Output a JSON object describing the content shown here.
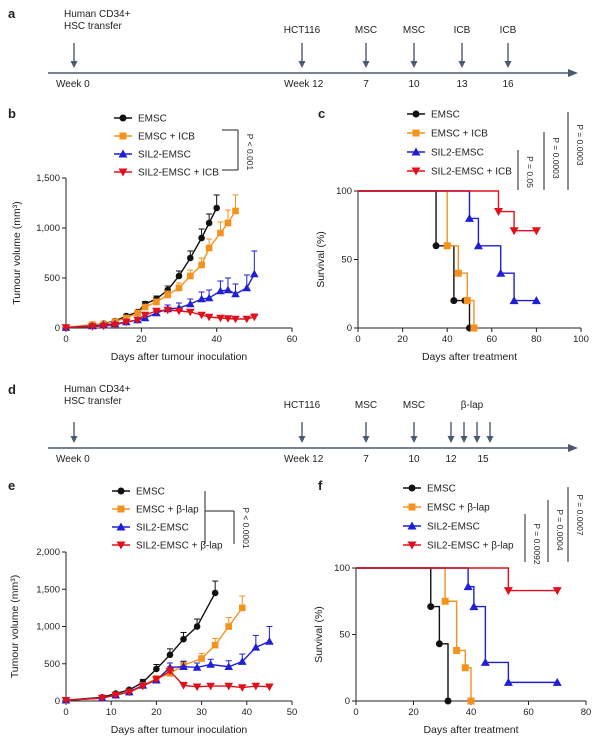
{
  "colors": {
    "black": "#111111",
    "orange": "#f5921e",
    "blue": "#1f1fd6",
    "red": "#e0101c",
    "timeline": "#4a5a6e"
  },
  "timelines": [
    {
      "panel": "a",
      "events": [
        {
          "top": "Human CD34+",
          "top2": "HSC transfer",
          "bottom": "Week 0",
          "week": 0
        },
        {
          "top": "HCT116",
          "top2": "",
          "bottom": "Week 12",
          "week": 12
        },
        {
          "top": "MSC",
          "top2": "",
          "bottom": "7",
          "week": 7
        },
        {
          "top": "MSC",
          "top2": "",
          "bottom": "10",
          "week": 10
        },
        {
          "top": "ICB",
          "top2": "",
          "bottom": "13",
          "week": 13
        },
        {
          "top": "ICB",
          "top2": "",
          "bottom": "16",
          "week": 16
        }
      ]
    },
    {
      "panel": "d",
      "events": [
        {
          "top": "Human CD34+",
          "top2": "HSC transfer",
          "bottom": "Week 0"
        },
        {
          "top": "HCT116",
          "top2": "",
          "bottom": "Week 12"
        },
        {
          "top": "MSC",
          "top2": "",
          "bottom": "7"
        },
        {
          "top": "MSC",
          "top2": "",
          "bottom": "10"
        },
        {
          "top": "β-lap",
          "top2": "",
          "bottom": "12"
        },
        {
          "top": "",
          "top2": "",
          "bottom": ""
        },
        {
          "top": "",
          "top2": "",
          "bottom": "15"
        },
        {
          "top": "",
          "top2": "",
          "bottom": ""
        }
      ]
    }
  ],
  "chart_data": [
    {
      "panel": "b",
      "type": "line",
      "xlabel": "Days after tumour inoculation",
      "ylabel": "Tumour volume (mm³)",
      "xlim": [
        0,
        60
      ],
      "ylim": [
        0,
        1500
      ],
      "xticks": [
        0,
        20,
        40,
        60
      ],
      "yticks": [
        0,
        500,
        1000,
        1500
      ],
      "ytick_labels": [
        "0",
        "500",
        "1,000",
        "1,500"
      ],
      "pvalue": "P < 0.001",
      "series": [
        {
          "name": "EMSC",
          "color": "black",
          "marker": "circle",
          "x": [
            0,
            7,
            10,
            13,
            16,
            19,
            21,
            24,
            27,
            30,
            33,
            36,
            38,
            40
          ],
          "y": [
            5,
            25,
            45,
            70,
            120,
            160,
            240,
            290,
            380,
            520,
            700,
            900,
            1050,
            1200
          ],
          "err": [
            0,
            5,
            8,
            10,
            15,
            20,
            25,
            30,
            40,
            50,
            70,
            90,
            90,
            130
          ]
        },
        {
          "name": "EMSC + ICB",
          "color": "orange",
          "marker": "square",
          "x": [
            0,
            7,
            10,
            13,
            16,
            19,
            21,
            24,
            27,
            30,
            33,
            36,
            38,
            41,
            43,
            45
          ],
          "y": [
            5,
            35,
            40,
            65,
            100,
            150,
            210,
            260,
            330,
            400,
            520,
            630,
            800,
            950,
            1050,
            1170
          ],
          "err": [
            0,
            10,
            10,
            15,
            15,
            20,
            25,
            30,
            40,
            50,
            60,
            70,
            90,
            110,
            130,
            160
          ]
        },
        {
          "name": "SIL2-EMSC",
          "color": "blue",
          "marker": "triangle-up",
          "x": [
            0,
            7,
            10,
            13,
            16,
            19,
            21,
            24,
            27,
            30,
            33,
            36,
            38,
            41,
            43,
            45,
            48,
            50
          ],
          "y": [
            5,
            20,
            30,
            40,
            60,
            80,
            100,
            150,
            190,
            200,
            240,
            290,
            300,
            370,
            380,
            340,
            400,
            540
          ],
          "err": [
            0,
            5,
            5,
            10,
            10,
            15,
            20,
            25,
            40,
            50,
            50,
            70,
            80,
            100,
            120,
            100,
            130,
            230
          ]
        },
        {
          "name": "SIL2-EMSC + ICB",
          "color": "red",
          "marker": "triangle-down",
          "x": [
            0,
            7,
            10,
            13,
            16,
            19,
            21,
            24,
            27,
            30,
            33,
            36,
            38,
            41,
            43,
            45,
            48,
            50
          ],
          "y": [
            5,
            15,
            20,
            30,
            60,
            80,
            130,
            170,
            180,
            170,
            160,
            130,
            110,
            100,
            95,
            90,
            90,
            110
          ],
          "err": [
            0,
            5,
            5,
            5,
            10,
            15,
            20,
            25,
            25,
            25,
            25,
            25,
            20,
            20,
            20,
            20,
            25,
            30
          ]
        }
      ]
    },
    {
      "panel": "c",
      "type": "line",
      "step": true,
      "xlabel": "Days after treatment",
      "ylabel": "Survival (%)",
      "xlim": [
        0,
        100
      ],
      "ylim": [
        0,
        100
      ],
      "xticks": [
        0,
        20,
        40,
        60,
        80,
        100
      ],
      "yticks": [
        0,
        50,
        100
      ],
      "pvalues": [
        "P = 0.05",
        "P = 0.0003",
        "P = 0.0003"
      ],
      "series": [
        {
          "name": "EMSC",
          "color": "black",
          "marker": "circle",
          "x": [
            0,
            35,
            43,
            48,
            50
          ],
          "y": [
            100,
            60,
            20,
            20,
            0
          ]
        },
        {
          "name": "EMSC + ICB",
          "color": "orange",
          "marker": "square",
          "x": [
            0,
            40,
            45,
            49,
            52
          ],
          "y": [
            100,
            60,
            40,
            20,
            0
          ]
        },
        {
          "name": "SIL2-EMSC",
          "color": "blue",
          "marker": "triangle-up",
          "x": [
            0,
            50,
            54,
            64,
            70,
            80
          ],
          "y": [
            100,
            80,
            60,
            40,
            20,
            20
          ]
        },
        {
          "name": "SIL2-EMSC + ICB",
          "color": "red",
          "marker": "triangle-down",
          "x": [
            0,
            63,
            70,
            80
          ],
          "y": [
            100,
            85,
            71,
            71
          ]
        }
      ]
    },
    {
      "panel": "e",
      "type": "line",
      "xlabel": "Days after tumour inoculation",
      "ylabel": "Tumour volume (mm³)",
      "xlim": [
        0,
        50
      ],
      "ylim": [
        0,
        2000
      ],
      "xticks": [
        0,
        10,
        20,
        30,
        40,
        50
      ],
      "yticks": [
        0,
        500,
        1000,
        1500,
        2000
      ],
      "ytick_labels": [
        "0",
        "500",
        "1,000",
        "1,500",
        "2,000"
      ],
      "pvalue": "P < 0.0001",
      "series": [
        {
          "name": "EMSC",
          "color": "black",
          "marker": "circle",
          "x": [
            0,
            8,
            11,
            14,
            17,
            20,
            23,
            26,
            29,
            33
          ],
          "y": [
            10,
            50,
            100,
            150,
            250,
            430,
            620,
            830,
            1000,
            1450
          ],
          "err": [
            0,
            10,
            15,
            20,
            40,
            60,
            80,
            90,
            100,
            160
          ]
        },
        {
          "name": "EMSC + β-lap",
          "color": "orange",
          "marker": "square",
          "x": [
            0,
            8,
            11,
            14,
            17,
            20,
            23,
            26,
            30,
            33,
            36,
            39
          ],
          "y": [
            10,
            40,
            80,
            120,
            210,
            300,
            370,
            480,
            570,
            750,
            1000,
            1250
          ],
          "err": [
            0,
            10,
            15,
            20,
            30,
            40,
            50,
            60,
            70,
            90,
            120,
            160
          ]
        },
        {
          "name": "SIL2-EMSC",
          "color": "blue",
          "marker": "triangle-up",
          "x": [
            0,
            8,
            11,
            14,
            17,
            20,
            23,
            26,
            29,
            32,
            36,
            39,
            42,
            45
          ],
          "y": [
            10,
            40,
            80,
            120,
            210,
            280,
            450,
            460,
            450,
            490,
            460,
            530,
            720,
            800
          ],
          "err": [
            0,
            10,
            15,
            20,
            30,
            40,
            60,
            70,
            60,
            70,
            80,
            100,
            160,
            200
          ]
        },
        {
          "name": "SIL2-EMSC + β-lap",
          "color": "red",
          "marker": "triangle-down",
          "x": [
            0,
            8,
            11,
            14,
            17,
            20,
            23,
            26,
            29,
            32,
            36,
            39,
            42,
            45
          ],
          "y": [
            10,
            40,
            80,
            120,
            200,
            290,
            400,
            210,
            190,
            200,
            200,
            180,
            200,
            190
          ],
          "err": [
            0,
            10,
            15,
            20,
            30,
            40,
            60,
            40,
            30,
            30,
            30,
            30,
            30,
            30
          ]
        }
      ]
    },
    {
      "panel": "f",
      "type": "line",
      "step": true,
      "xlabel": "Days after treatment",
      "ylabel": "Survival (%)",
      "xlim": [
        0,
        80
      ],
      "ylim": [
        0,
        100
      ],
      "xticks": [
        0,
        20,
        40,
        60,
        80
      ],
      "yticks": [
        0,
        50,
        100
      ],
      "pvalues": [
        "P = 0.0092",
        "P = 0.0004",
        "P = 0.0007"
      ],
      "series": [
        {
          "name": "EMSC",
          "color": "black",
          "marker": "circle",
          "x": [
            0,
            26,
            29,
            32
          ],
          "y": [
            100,
            71,
            43,
            0
          ]
        },
        {
          "name": "EMSC + β-lap",
          "color": "orange",
          "marker": "square",
          "x": [
            0,
            31,
            35,
            38,
            40
          ],
          "y": [
            100,
            75,
            38,
            25,
            0
          ]
        },
        {
          "name": "SIL2-EMSC",
          "color": "blue",
          "marker": "triangle-up",
          "x": [
            0,
            39,
            41,
            45,
            53,
            70
          ],
          "y": [
            100,
            86,
            71,
            29,
            14,
            14
          ]
        },
        {
          "name": "SIL2-EMSC + β-lap",
          "color": "red",
          "marker": "triangle-down",
          "x": [
            0,
            53,
            70
          ],
          "y": [
            100,
            83,
            83
          ]
        }
      ]
    }
  ],
  "panel_labels": {
    "a": "a",
    "b": "b",
    "c": "c",
    "d": "d",
    "e": "e",
    "f": "f"
  }
}
